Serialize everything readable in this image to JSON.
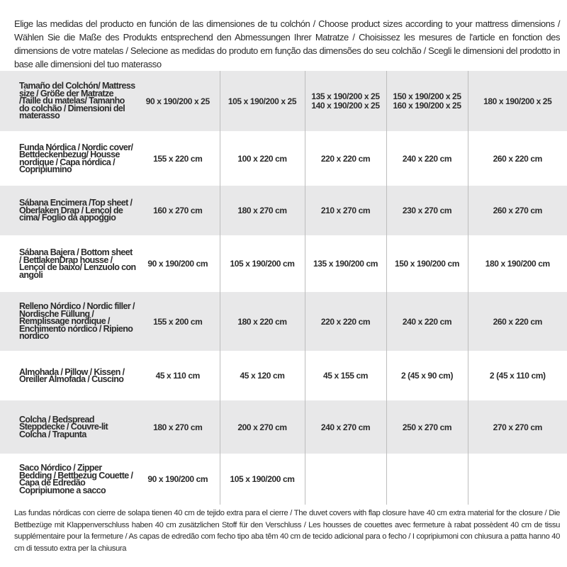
{
  "intro": "Elige las medidas del producto en función de las dimensiones de tu colchón / Choose product sizes according to your mattress dimensions / Wählen Sie die Maße des Produkts entsprechend den Abmessungen Ihrer Matratze / Choisissez les mesures de l'article en fonction des dimensions de votre matelas / Selecione as medidas do produto em função das dimensões do seu colchão / Scegli le dimensioni del prodotto in base alle dimensioni del tuo materasso",
  "table": {
    "rows": [
      {
        "label": "Tamaño del Colchón/ Mattress size / Größe der Matratze /Taille du matelas/ Tamanho do colchão / Dimensioni del materasso",
        "values": [
          "90 x 190/200 x 25",
          "105 x 190/200 x 25",
          "135 x 190/200 x 25\n140 x 190/200 x 25",
          "150 x 190/200 x 25\n160 x 190/200 x 25",
          "180 x 190/200 x 25"
        ]
      },
      {
        "label": "Funda Nórdica / Nordic cover/ Bettdeckenbezug/ Housse nordique / Capa nórdica / Copripiumino",
        "values": [
          "155 x 220 cm",
          "100 x 220 cm",
          "220 x 220 cm",
          "240 x 220 cm",
          "260 x 220 cm"
        ]
      },
      {
        "label": "Sábana Encimera /Top sheet / Oberlaken Drap / Lençol de cima/ Foglio da appoggio",
        "values": [
          "160 x 270 cm",
          "180 x 270 cm",
          "210 x 270 cm",
          "230 x 270 cm",
          "260 x 270 cm"
        ]
      },
      {
        "label": "Sábana Bajera / Bottom sheet / BettlakenDrap housse / Lençol de baixo/ Lenzuolo con angoli",
        "values": [
          "90 x 190/200 cm",
          "105 x 190/200 cm",
          "135 x 190/200 cm",
          "150 x 190/200 cm",
          "180 x 190/200 cm"
        ]
      },
      {
        "label": "Relleno Nórdico / Nordic filler / Nordische Füllung / Remplissage nordique / Enchimento nórdico / Ripieno nordico",
        "values": [
          "155 x 200 cm",
          "180 x 220 cm",
          "220 x 220 cm",
          "240 x 220 cm",
          "260 x 220 cm"
        ]
      },
      {
        "label": "Almohada / Pillow / Kissen / Oreiller Almofada / Cuscino",
        "values": [
          "45 x 110 cm",
          "45 x 120 cm",
          "45 x 155 cm",
          "2 (45 x 90 cm)",
          "2 (45 x 110 cm)"
        ]
      },
      {
        "label": "Colcha / Bedspread Steppdecke / Couvre-lit Colcha / Trapunta",
        "values": [
          "180 x 270 cm",
          "200 x 270 cm",
          "240 x 270 cm",
          "250 x 270 cm",
          "270 x 270 cm"
        ]
      },
      {
        "label": "Saco Nórdico / Zipper Bedding / Bettbezug Couette / Capa de Edredão Copripiumone a sacco",
        "values": [
          "90 x 190/200 cm",
          "105 x 190/200 cm",
          "",
          "",
          ""
        ]
      }
    ]
  },
  "footnote": "Las fundas nórdicas con cierre de solapa tienen 40 cm de tejido extra para el cierre / The duvet covers with flap closure have 40 cm extra material for the closure / Die Bettbezüge mit Klappenverschluss haben 40 cm zusätzlichen Stoff für den Verschluss / Les housses de couettes avec fermeture à rabat possèdent 40 cm de tissu supplémentaire pour la fermeture / As capas de edredão com fecho tipo aba têm 40 cm de tecido adicional para o fecho / I copripiumoni con chiusura a patta hanno 40 cm di tessuto extra per la chiusura",
  "colors": {
    "row_shade": "#e8e8e9",
    "divider": "#bdbdbd",
    "text": "#2b2b2b"
  }
}
